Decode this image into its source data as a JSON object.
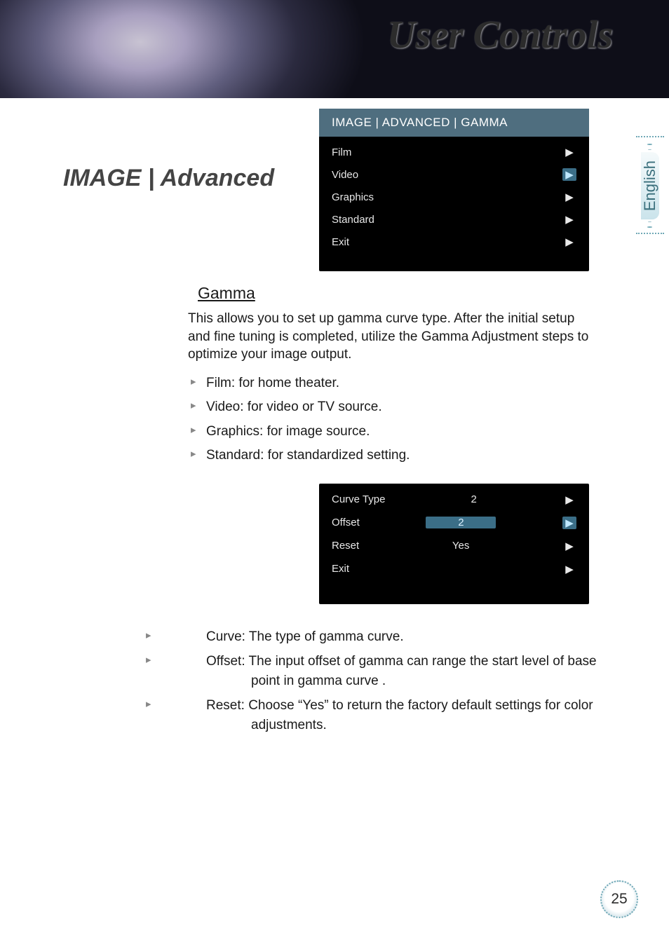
{
  "banner": {
    "title": "User Controls"
  },
  "language_tab": {
    "label": "English"
  },
  "section_title": "IMAGE | Advanced",
  "osd_gamma": {
    "header": "IMAGE | ADVANCED | GAMMA",
    "rows": [
      {
        "label": "Film",
        "value": "",
        "value_hl": false,
        "arrow_hl": false
      },
      {
        "label": "Video",
        "value": "",
        "value_hl": true,
        "arrow_hl": true
      },
      {
        "label": "Graphics",
        "value": "",
        "value_hl": false,
        "arrow_hl": false
      },
      {
        "label": "Standard",
        "value": "",
        "value_hl": false,
        "arrow_hl": false
      },
      {
        "label": "Exit",
        "value": "",
        "value_hl": false,
        "arrow_hl": false
      }
    ],
    "colors": {
      "bg": "#000000",
      "header_bg": "#4f6e7f",
      "highlight": "#3b6e87",
      "text": "#e8e8e8"
    }
  },
  "gamma_section": {
    "heading": "Gamma",
    "para": "This allows you to set up gamma curve type. After the initial setup and fine tuning is completed, utilize the Gamma Adjustment steps to optimize your image output.",
    "bullets": [
      "Film: for home theater.",
      "Video: for video or TV source.",
      "Graphics: for image source.",
      "Standard: for standardized setting."
    ]
  },
  "osd_curve": {
    "rows": [
      {
        "label": "Curve Type",
        "value": "2",
        "value_hl": false,
        "arrow_hl": false
      },
      {
        "label": "Offset",
        "value": "2",
        "value_hl": true,
        "arrow_hl": true
      },
      {
        "label": "Reset",
        "value": "Yes",
        "value_hl": false,
        "arrow_hl": false
      },
      {
        "label": "Exit",
        "value": "",
        "value_hl": false,
        "arrow_hl": false
      }
    ]
  },
  "curve_section": {
    "bullets": [
      "Curve: The type of gamma curve.",
      "Offset: The input offset of gamma can range the start level of base point in gamma curve .",
      "Reset: Choose “Yes” to return the factory default settings for color adjustments."
    ]
  },
  "page_number": "25"
}
